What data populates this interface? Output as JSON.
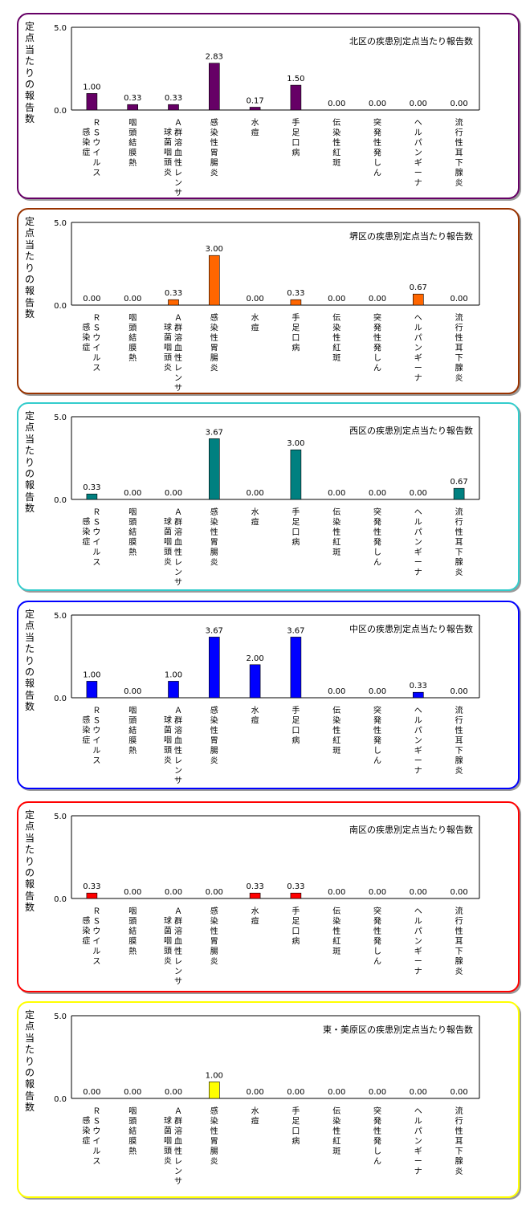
{
  "categories": [
    [
      "Ｒ",
      "Ｓ",
      "ウ",
      "イ",
      "ル",
      "ス"
    ],
    [
      "咽",
      "頭",
      "結",
      "膜",
      "熱"
    ],
    [
      "Ａ",
      "群",
      "溶",
      "血",
      "性",
      "レ",
      "ン",
      "サ"
    ],
    [
      "感",
      "染",
      "性",
      "胃",
      "腸",
      "炎"
    ],
    [
      "水",
      "痘"
    ],
    [
      "手",
      "足",
      "口",
      "病"
    ],
    [
      "伝",
      "染",
      "性",
      "紅",
      "斑"
    ],
    [
      "突",
      "発",
      "性",
      "発",
      "し",
      "ん"
    ],
    [
      "ヘ",
      "ル",
      "パ",
      "ン",
      "ギ",
      "ー",
      "ナ"
    ],
    [
      "流",
      "行",
      "性",
      "耳",
      "下",
      "腺",
      "炎"
    ]
  ],
  "subcategories": {
    "0": [
      "感",
      "染",
      "症"
    ],
    "2": [
      "球",
      "菌",
      "咽",
      "頭",
      "炎"
    ]
  },
  "chart_data": [
    {
      "type": "bar",
      "title": "北区の疾患別定点当たり報告数",
      "ylabel": "定点当たりの報告数",
      "yticks": [
        "5.0",
        "0.0"
      ],
      "ylim": [
        0,
        5
      ],
      "color": "#660066",
      "border_color": "#660066",
      "values": [
        1.0,
        0.33,
        0.33,
        2.83,
        0.17,
        1.5,
        0.0,
        0.0,
        0.0,
        0.0
      ],
      "labels": [
        "1.00",
        "0.33",
        "0.33",
        "2.83",
        "0.17",
        "1.50",
        "0.00",
        "0.00",
        "0.00",
        "0.00"
      ]
    },
    {
      "type": "bar",
      "title": "堺区の疾患別定点当たり報告数",
      "ylabel": "定点当たりの報告数",
      "yticks": [
        "5.0",
        "0.0"
      ],
      "ylim": [
        0,
        5
      ],
      "color": "#ff6600",
      "border_color": "#993300",
      "values": [
        0.0,
        0.0,
        0.33,
        3.0,
        0.0,
        0.33,
        0.0,
        0.0,
        0.67,
        0.0
      ],
      "labels": [
        "0.00",
        "0.00",
        "0.33",
        "3.00",
        "0.00",
        "0.33",
        "0.00",
        "0.00",
        "0.67",
        "0.00"
      ]
    },
    {
      "type": "bar",
      "title": "西区の疾患別定点当たり報告数",
      "ylabel": "定点当たりの報告数",
      "yticks": [
        "5.0",
        "0.0"
      ],
      "ylim": [
        0,
        5
      ],
      "color": "#008080",
      "border_color": "#33cccc",
      "values": [
        0.33,
        0.0,
        0.0,
        3.67,
        0.0,
        3.0,
        0.0,
        0.0,
        0.0,
        0.67
      ],
      "labels": [
        "0.33",
        "0.00",
        "0.00",
        "3.67",
        "0.00",
        "3.00",
        "0.00",
        "0.00",
        "0.00",
        "0.67"
      ]
    },
    {
      "type": "bar",
      "title": "中区の疾患別定点当たり報告数",
      "ylabel": "定点当たりの報告数",
      "yticks": [
        "5.0",
        "0.0"
      ],
      "ylim": [
        0,
        5
      ],
      "color": "#0000ff",
      "border_color": "#0000ff",
      "values": [
        1.0,
        0.0,
        1.0,
        3.67,
        2.0,
        3.67,
        0.0,
        0.0,
        0.33,
        0.0
      ],
      "labels": [
        "1.00",
        "0.00",
        "1.00",
        "3.67",
        "2.00",
        "3.67",
        "0.00",
        "0.00",
        "0.33",
        "0.00"
      ]
    },
    {
      "type": "bar",
      "title": "南区の疾患別定点当たり報告数",
      "ylabel": "定点当たりの報告数",
      "yticks": [
        "5.0",
        "0.0"
      ],
      "ylim": [
        0,
        5
      ],
      "color": "#ff0000",
      "border_color": "#ff0000",
      "values": [
        0.33,
        0.0,
        0.0,
        0.0,
        0.33,
        0.33,
        0.0,
        0.0,
        0.0,
        0.0
      ],
      "labels": [
        "0.33",
        "0.00",
        "0.00",
        "0.00",
        "0.33",
        "0.33",
        "0.00",
        "0.00",
        "0.00",
        "0.00"
      ]
    },
    {
      "type": "bar",
      "title": "東・美原区の疾患別定点当たり報告数",
      "ylabel": "定点当たりの報告数",
      "yticks": [
        "5.0",
        "0.0"
      ],
      "ylim": [
        0,
        5
      ],
      "color": "#ffff00",
      "border_color": "#ffff00",
      "values": [
        0.0,
        0.0,
        0.0,
        1.0,
        0.0,
        0.0,
        0.0,
        0.0,
        0.0,
        0.0
      ],
      "labels": [
        "0.00",
        "0.00",
        "0.00",
        "1.00",
        "0.00",
        "0.00",
        "0.00",
        "0.00",
        "0.00",
        "0.00"
      ]
    }
  ]
}
